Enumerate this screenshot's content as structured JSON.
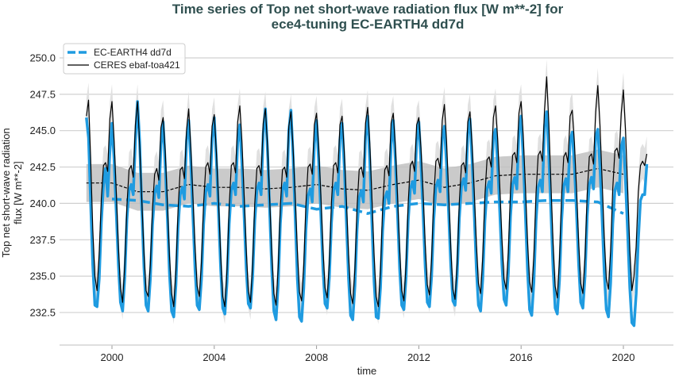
{
  "chart_data": {
    "type": "line",
    "title": [
      "Time series of Top net short-wave radiation flux [W m**-2] for",
      "ece4-tuning EC-EARTH4 dd7d"
    ],
    "xlabel": "time",
    "ylabel": [
      "Top net short-wave radiation",
      "flux [W m**-2]"
    ],
    "xlim": [
      1998,
      2022
    ],
    "ylim": [
      230.3,
      251.2
    ],
    "xticks": [
      "2000",
      "2004",
      "2008",
      "2012",
      "2016",
      "2020"
    ],
    "xtick_values": [
      2000,
      2004,
      2008,
      2012,
      2016,
      2020
    ],
    "yticks": [
      "232.5",
      "235.0",
      "237.5",
      "240.0",
      "242.5",
      "245.0",
      "247.5",
      "250.0"
    ],
    "ytick_values": [
      232.5,
      235.0,
      237.5,
      240.0,
      242.5,
      245.0,
      247.5,
      250.0
    ],
    "grid": "horizontal",
    "legend_placement": "top-left",
    "legend": [
      {
        "label": "EC-EARTH4 dd7d",
        "style": "dashed",
        "color": "#1f9be0"
      },
      {
        "label": "CERES ebaf-toa421",
        "style": "solid",
        "color": "#000000"
      }
    ],
    "colors": {
      "model": "#1f9be0",
      "obs": "#000000",
      "obs_envelope": "#e0e0e0",
      "obs_mean_band": "#bdbdbd"
    },
    "start_year": 1999,
    "obs_envelope_halfwidth": 1.2,
    "obs_mean_band_halfwidth": 1.3,
    "series": [
      {
        "name": "CERES ebaf-toa421",
        "kind": "monthly",
        "values": [
          [
            246.0,
            247.1,
            243.0,
            238.2,
            235.0,
            234.0,
            236.5,
            240.3,
            242.6,
            242.8,
            242.2,
            245.8
          ],
          [
            247.0,
            244.3,
            240.8,
            237.0,
            234.2,
            233.2,
            235.8,
            239.8,
            242.3,
            242.6,
            241.8,
            245.4
          ],
          [
            247.0,
            244.0,
            240.2,
            236.6,
            234.0,
            233.6,
            235.8,
            239.6,
            242.0,
            242.4,
            241.6,
            245.2
          ],
          [
            245.9,
            243.6,
            240.0,
            236.4,
            233.8,
            232.9,
            235.4,
            239.5,
            242.3,
            242.5,
            241.7,
            245.0
          ],
          [
            246.5,
            243.8,
            240.4,
            236.9,
            234.3,
            233.6,
            236.0,
            240.0,
            242.5,
            242.8,
            242.0,
            245.3
          ],
          [
            246.1,
            243.5,
            240.2,
            236.4,
            233.6,
            232.9,
            235.5,
            239.8,
            242.6,
            242.8,
            242.1,
            245.6
          ],
          [
            246.7,
            244.2,
            240.6,
            236.8,
            234.0,
            233.2,
            235.8,
            240.0,
            242.4,
            242.6,
            241.9,
            245.5
          ],
          [
            246.5,
            244.0,
            240.3,
            236.6,
            233.8,
            233.0,
            235.6,
            239.8,
            242.3,
            242.5,
            241.8,
            245.3
          ],
          [
            246.3,
            243.8,
            240.4,
            236.7,
            233.9,
            233.3,
            235.7,
            239.9,
            242.5,
            242.7,
            242.0,
            245.4
          ],
          [
            246.2,
            243.9,
            240.6,
            236.9,
            234.2,
            233.5,
            235.9,
            240.1,
            242.6,
            242.8,
            242.1,
            245.4
          ],
          [
            246.0,
            243.6,
            240.2,
            236.5,
            233.8,
            233.1,
            235.5,
            239.7,
            242.3,
            242.5,
            241.8,
            245.5
          ],
          [
            246.6,
            244.1,
            240.3,
            236.4,
            233.6,
            232.9,
            235.4,
            239.6,
            242.3,
            242.6,
            241.9,
            245.5
          ],
          [
            246.2,
            243.9,
            240.5,
            236.8,
            234.0,
            233.3,
            235.8,
            240.0,
            242.6,
            242.9,
            242.2,
            245.4
          ],
          [
            245.9,
            243.8,
            240.7,
            237.1,
            234.4,
            233.7,
            236.2,
            240.4,
            242.9,
            243.1,
            242.4,
            245.7
          ],
          [
            246.8,
            244.3,
            240.7,
            236.9,
            234.1,
            233.4,
            235.9,
            240.1,
            242.6,
            242.8,
            242.1,
            245.6
          ],
          [
            246.3,
            244.0,
            240.8,
            237.2,
            234.5,
            233.8,
            236.3,
            240.5,
            243.0,
            243.2,
            242.5,
            245.9
          ],
          [
            246.7,
            244.4,
            241.1,
            237.5,
            234.8,
            234.1,
            236.6,
            240.8,
            243.3,
            243.5,
            242.8,
            246.2
          ],
          [
            247.0,
            244.6,
            241.2,
            237.4,
            234.6,
            233.9,
            236.4,
            240.7,
            243.3,
            243.6,
            242.9,
            246.4
          ],
          [
            248.7,
            245.5,
            241.3,
            237.2,
            234.3,
            233.5,
            236.1,
            240.5,
            243.2,
            243.5,
            242.8,
            246.0
          ],
          [
            246.4,
            244.2,
            241.0,
            237.3,
            234.5,
            233.8,
            236.3,
            240.6,
            243.2,
            243.4,
            242.7,
            246.3
          ],
          [
            248.1,
            245.4,
            241.6,
            237.7,
            234.8,
            234.1,
            236.7,
            241.0,
            243.6,
            243.8,
            243.1,
            246.2
          ],
          [
            247.8,
            245.0,
            241.0,
            236.8,
            234.0,
            235.0,
            237.0,
            240.8,
            242.6,
            242.9,
            242.6,
            243.4
          ]
        ]
      },
      {
        "name": "EC-EARTH4 dd7d",
        "kind": "monthly",
        "values": [
          [
            245.9,
            244.5,
            240.0,
            235.8,
            233.0,
            232.9,
            234.8,
            238.7,
            241.3,
            242.4,
            240.5,
            243.5
          ],
          [
            245.5,
            243.0,
            239.4,
            235.8,
            233.2,
            232.6,
            234.9,
            238.9,
            240.9,
            241.3,
            240.6,
            244.3
          ],
          [
            247.0,
            244.2,
            239.6,
            235.6,
            233.0,
            232.6,
            234.8,
            238.5,
            240.7,
            241.2,
            240.4,
            244.0
          ],
          [
            245.6,
            242.6,
            239.0,
            235.2,
            232.6,
            232.2,
            234.4,
            238.3,
            240.6,
            241.1,
            240.3,
            244.3
          ],
          [
            245.7,
            242.8,
            239.1,
            235.4,
            233.0,
            232.7,
            234.8,
            238.6,
            240.8,
            241.3,
            240.5,
            244.5
          ],
          [
            245.9,
            243.0,
            239.3,
            235.5,
            232.8,
            232.4,
            234.6,
            238.6,
            240.9,
            241.4,
            240.6,
            244.2
          ],
          [
            245.4,
            242.7,
            239.2,
            235.5,
            233.1,
            232.8,
            234.9,
            238.8,
            240.9,
            241.4,
            240.6,
            244.8
          ],
          [
            246.5,
            243.6,
            239.5,
            235.4,
            232.6,
            232.0,
            234.4,
            238.6,
            240.9,
            241.4,
            240.5,
            245.0
          ],
          [
            246.4,
            243.2,
            239.0,
            234.8,
            232.2,
            231.9,
            234.2,
            238.2,
            240.5,
            241.0,
            240.1,
            244.1
          ],
          [
            245.7,
            242.9,
            239.3,
            235.5,
            233.1,
            232.8,
            234.9,
            238.7,
            240.9,
            241.4,
            240.6,
            244.4
          ],
          [
            245.5,
            242.6,
            238.8,
            234.9,
            232.3,
            232.0,
            234.3,
            238.2,
            240.4,
            240.9,
            240.1,
            244.6
          ],
          [
            246.0,
            242.9,
            238.6,
            234.6,
            232.2,
            232.1,
            234.2,
            238.1,
            240.3,
            240.8,
            240.0,
            244.0
          ],
          [
            245.7,
            242.9,
            239.3,
            235.5,
            233.0,
            232.7,
            234.9,
            238.8,
            241.0,
            241.5,
            240.7,
            244.3
          ],
          [
            245.6,
            242.8,
            239.3,
            235.6,
            233.2,
            232.9,
            235.0,
            238.9,
            241.1,
            241.6,
            240.8,
            244.5
          ],
          [
            245.3,
            242.7,
            239.3,
            235.7,
            233.3,
            233.0,
            235.1,
            239.0,
            241.2,
            241.7,
            240.9,
            244.8
          ],
          [
            245.8,
            243.0,
            239.3,
            235.5,
            233.0,
            232.6,
            234.8,
            238.8,
            241.0,
            241.5,
            240.7,
            244.6
          ],
          [
            245.1,
            242.7,
            239.4,
            235.8,
            233.4,
            233.0,
            235.2,
            239.1,
            241.3,
            241.8,
            241.0,
            245.0
          ],
          [
            246.0,
            243.1,
            239.3,
            235.4,
            232.7,
            232.3,
            234.6,
            238.8,
            241.1,
            241.6,
            240.8,
            245.3
          ],
          [
            246.3,
            243.3,
            239.4,
            235.5,
            232.8,
            232.4,
            234.7,
            238.8,
            241.2,
            241.7,
            240.8,
            244.3
          ],
          [
            244.9,
            242.6,
            239.4,
            235.8,
            233.2,
            232.8,
            235.0,
            239.1,
            241.3,
            241.8,
            241.0,
            244.6
          ],
          [
            245.1,
            242.5,
            239.0,
            235.3,
            232.7,
            232.2,
            234.5,
            238.6,
            240.9,
            241.4,
            240.6,
            243.9
          ],
          [
            244.5,
            241.5,
            238.0,
            234.2,
            231.8,
            231.6,
            233.8,
            237.5,
            240.2,
            240.6,
            240.6,
            242.7
          ]
        ]
      },
      {
        "name": "CERES ebaf-toa421 annual mean",
        "kind": "annual",
        "x": [
          1999,
          2000,
          2001,
          2002,
          2003,
          2004,
          2005,
          2006,
          2007,
          2008,
          2009,
          2010,
          2011,
          2012,
          2013,
          2014,
          2015,
          2016,
          2017,
          2018,
          2019,
          2020
        ],
        "values": [
          241.4,
          241.4,
          240.8,
          240.8,
          241.3,
          241.1,
          241.1,
          241.0,
          241.1,
          241.3,
          241.0,
          240.9,
          241.3,
          241.6,
          241.1,
          241.4,
          241.9,
          242.0,
          242.0,
          242.0,
          242.4,
          242.0
        ]
      },
      {
        "name": "EC-EARTH4 dd7d annual mean",
        "kind": "annual",
        "x": [
          2000,
          2001,
          2002,
          2003,
          2004,
          2005,
          2006,
          2007,
          2008,
          2009,
          2010,
          2011,
          2012,
          2013,
          2014,
          2015,
          2016,
          2017,
          2018,
          2019,
          2020
        ],
        "values": [
          240.3,
          240.2,
          239.9,
          239.8,
          240.0,
          239.8,
          239.9,
          240.0,
          239.6,
          239.8,
          239.3,
          239.8,
          240.0,
          239.9,
          240.0,
          240.1,
          240.1,
          240.2,
          240.2,
          240.1,
          239.3
        ]
      }
    ]
  }
}
